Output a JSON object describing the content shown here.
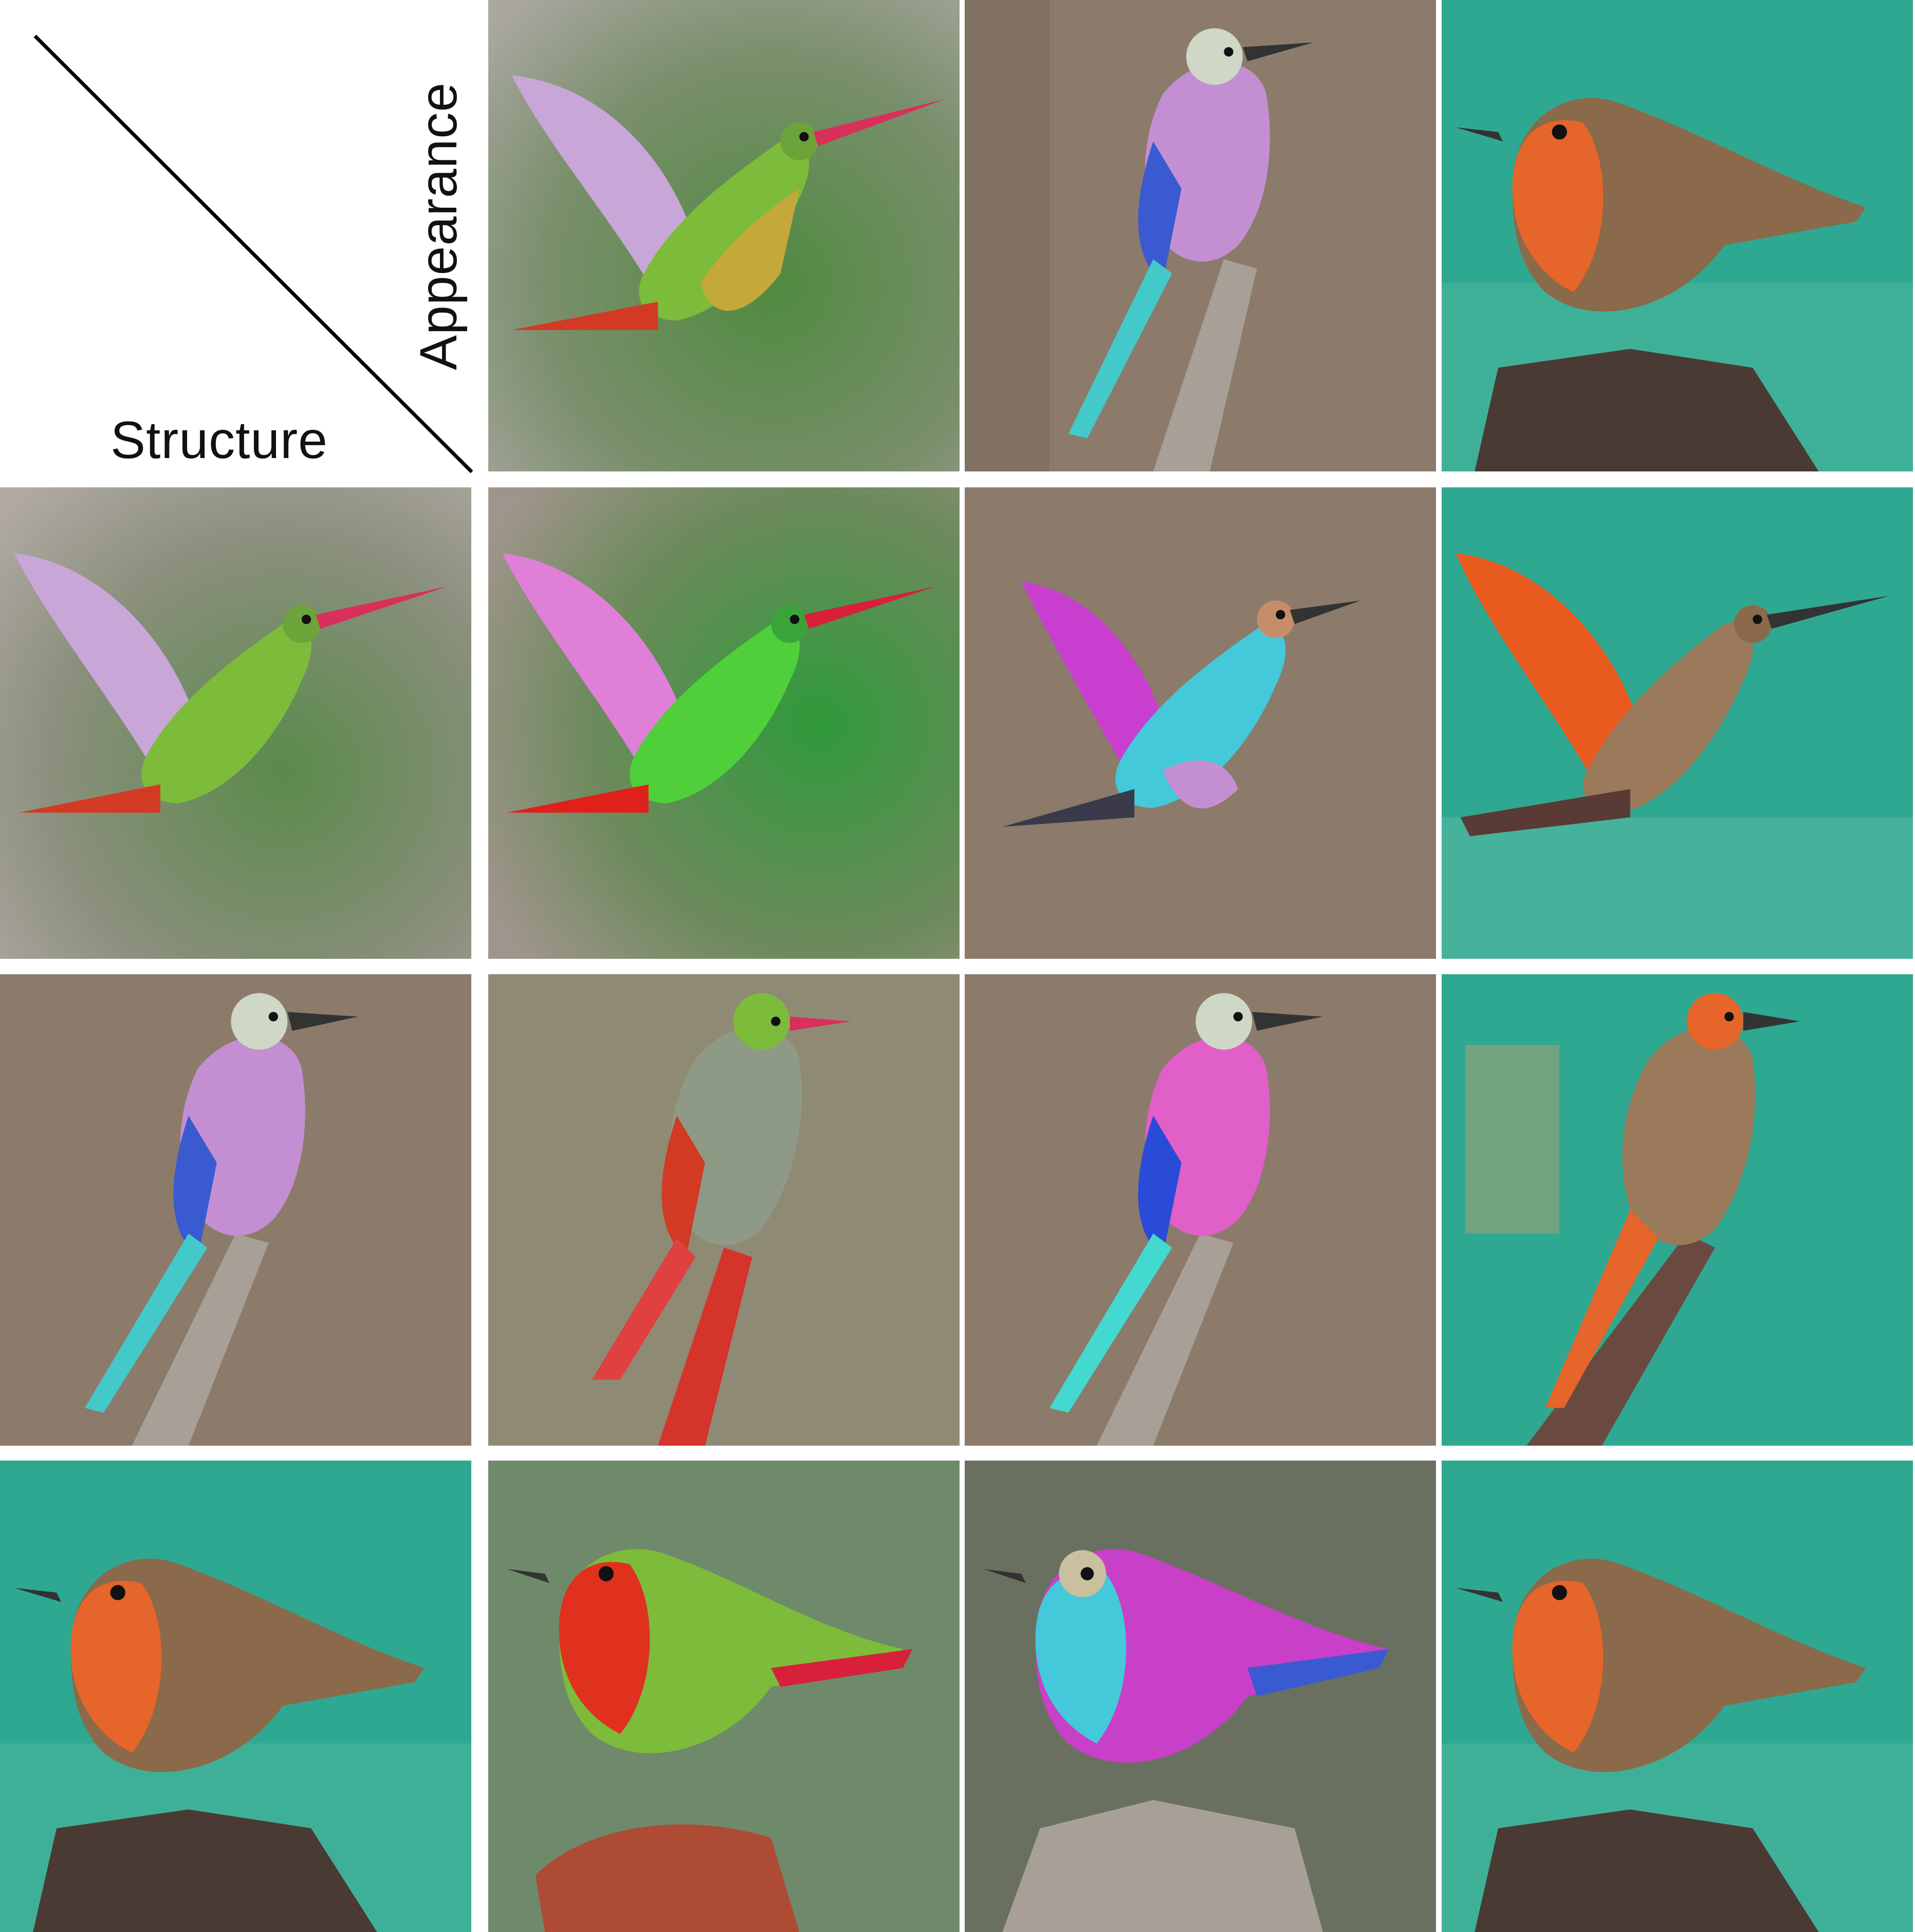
{
  "header": {
    "structure_label": "Structure",
    "appearance_label": "Appearance"
  },
  "grid": {
    "columns_header": [
      "hummingbird",
      "lilac-breasted-roller",
      "european-robin"
    ],
    "rows_header": [
      "hummingbird",
      "lilac-breasted-roller",
      "european-robin"
    ]
  },
  "colors": {
    "hummingbird_bg": "#6f8a62",
    "roller_bg": "#8c7b6b",
    "robin_bg": "#2fa891",
    "hummingbird_body": "#7dbb3a",
    "hummingbird_wing": "#c9a6d8",
    "hummingbird_tail": "#d23a24",
    "roller_breast": "#c48fd2",
    "roller_wing": "#3a5ad1",
    "roller_cyan": "#43c9c9",
    "robin_orange": "#e5652b",
    "robin_brown": "#8a6a4a"
  }
}
